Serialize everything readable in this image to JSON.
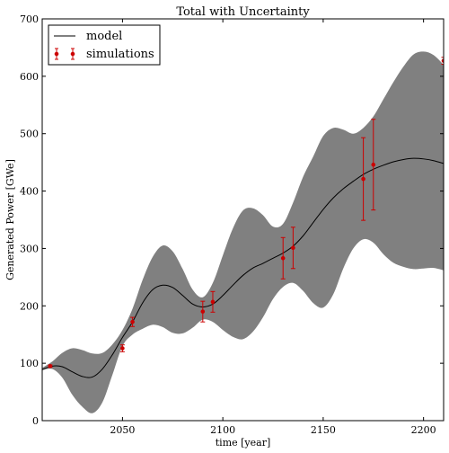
{
  "chart_data": {
    "type": "line",
    "title": "Total with Uncertainty",
    "xlabel": "time [year]",
    "ylabel": "Generated Power [GWe]",
    "xlim": [
      2010,
      2210
    ],
    "ylim": [
      0,
      700
    ],
    "xticks": [
      2050,
      2100,
      2150,
      2200
    ],
    "yticks": [
      0,
      100,
      200,
      300,
      400,
      500,
      600,
      700
    ],
    "grid": false,
    "legend": {
      "placement": "top-left",
      "entries": [
        {
          "label": "model",
          "style": "line",
          "color": "#000000"
        },
        {
          "label": "simulations",
          "style": "errorbar",
          "color": "#cc0000"
        }
      ]
    },
    "band_color": "#808080",
    "series": [
      {
        "name": "model",
        "x": [
          2010,
          2015,
          2020,
          2025,
          2030,
          2035,
          2040,
          2045,
          2050,
          2055,
          2060,
          2065,
          2070,
          2075,
          2080,
          2085,
          2090,
          2095,
          2100,
          2105,
          2110,
          2115,
          2120,
          2125,
          2130,
          2135,
          2140,
          2145,
          2150,
          2155,
          2160,
          2165,
          2170,
          2175,
          2180,
          2185,
          2190,
          2195,
          2200,
          2205,
          2210
        ],
        "y": [
          89,
          95,
          94,
          85,
          77,
          76,
          90,
          115,
          145,
          172,
          205,
          228,
          236,
          232,
          218,
          203,
          198,
          203,
          218,
          236,
          253,
          266,
          274,
          283,
          292,
          304,
          322,
          345,
          368,
          388,
          404,
          417,
          429,
          438,
          445,
          451,
          455,
          457,
          456,
          453,
          448
        ]
      },
      {
        "name": "uncertainty upper",
        "x": [
          2010,
          2015,
          2020,
          2025,
          2030,
          2035,
          2040,
          2045,
          2050,
          2055,
          2060,
          2065,
          2070,
          2075,
          2080,
          2085,
          2090,
          2095,
          2100,
          2105,
          2110,
          2115,
          2120,
          2125,
          2130,
          2135,
          2140,
          2145,
          2150,
          2155,
          2160,
          2165,
          2170,
          2175,
          2180,
          2185,
          2190,
          2195,
          2200,
          2205,
          2210
        ],
        "y": [
          92,
          103,
          118,
          126,
          123,
          117,
          118,
          133,
          158,
          195,
          245,
          285,
          305,
          295,
          264,
          228,
          215,
          240,
          288,
          335,
          366,
          370,
          358,
          338,
          343,
          380,
          425,
          460,
          496,
          510,
          507,
          500,
          510,
          530,
          560,
          590,
          617,
          638,
          643,
          637,
          620
        ]
      },
      {
        "name": "uncertainty lower",
        "x": [
          2010,
          2015,
          2020,
          2025,
          2030,
          2035,
          2040,
          2045,
          2050,
          2055,
          2060,
          2065,
          2070,
          2075,
          2080,
          2085,
          2090,
          2095,
          2100,
          2105,
          2110,
          2115,
          2120,
          2125,
          2130,
          2135,
          2140,
          2145,
          2150,
          2155,
          2160,
          2165,
          2170,
          2175,
          2180,
          2185,
          2190,
          2195,
          2200,
          2205,
          2210
        ],
        "y": [
          88,
          90,
          75,
          45,
          24,
          13,
          32,
          80,
          130,
          150,
          160,
          167,
          163,
          153,
          152,
          162,
          176,
          172,
          158,
          146,
          142,
          155,
          180,
          212,
          233,
          240,
          226,
          205,
          197,
          220,
          265,
          300,
          316,
          310,
          290,
          275,
          268,
          264,
          265,
          266,
          262
        ]
      },
      {
        "name": "simulations",
        "x": [
          2014,
          2050,
          2055,
          2090,
          2095,
          2130,
          2135,
          2170,
          2175,
          2210
        ],
        "y": [
          95,
          126,
          172,
          190,
          207,
          283,
          301,
          421,
          446,
          627
        ],
        "err": [
          2,
          6,
          8,
          18,
          18,
          36,
          36,
          72,
          79,
          6
        ]
      }
    ]
  }
}
